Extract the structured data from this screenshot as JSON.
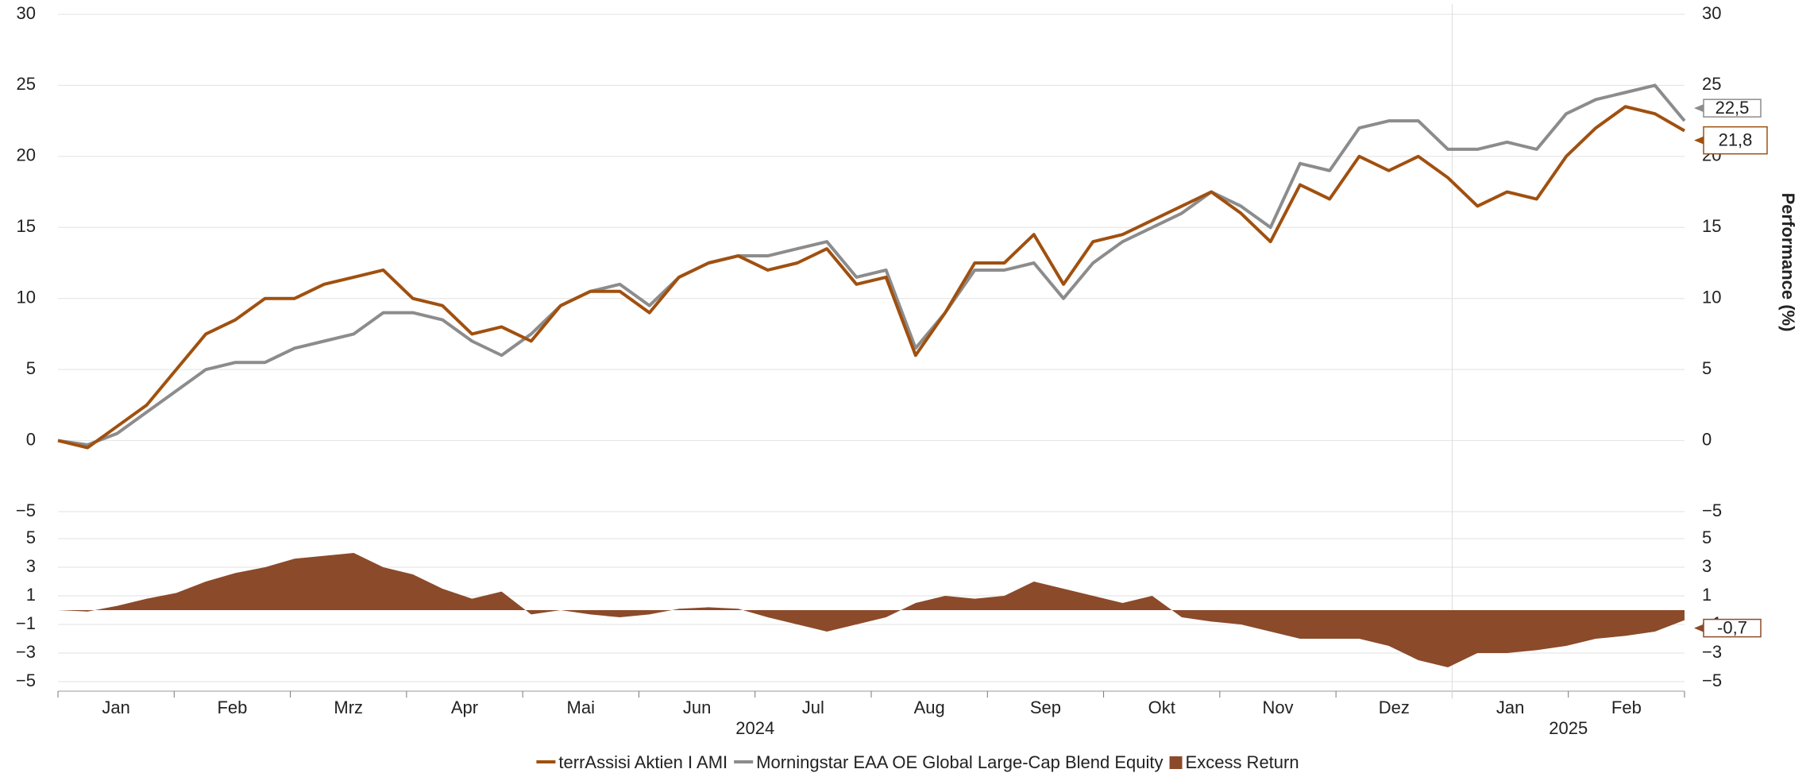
{
  "chart_data": [
    {
      "type": "line",
      "categories": [
        "Jan",
        "Feb",
        "Mrz",
        "Apr",
        "Mai",
        "Jun",
        "Jul",
        "Aug",
        "Sep",
        "Okt",
        "Nov",
        "Dez",
        "Jan",
        "Feb"
      ],
      "year_labels": [
        "2024",
        "2025"
      ],
      "y_label": "Performance (%)",
      "ylim": [
        -5,
        30
      ],
      "yticks": [
        {
          "value": -5,
          "label": "−5"
        },
        0,
        5,
        10,
        15,
        20,
        25,
        30
      ],
      "grid": true,
      "series": [
        {
          "name": "terrAssisi Aktien I AMI",
          "color": "#a0500f",
          "end_label": "21,8",
          "values": [
            [
              0,
              -0.5,
              1,
              2.5
            ],
            [
              5,
              7.5,
              8.5,
              10
            ],
            [
              10,
              11,
              11.5,
              12
            ],
            [
              10,
              9.5,
              7.5,
              8
            ],
            [
              7,
              9.5,
              10.5,
              10.5
            ],
            [
              9,
              11.5,
              12.5,
              13
            ],
            [
              12,
              12.5,
              13.5,
              11
            ],
            [
              11.5,
              6,
              9,
              12.5
            ],
            [
              12.5,
              14.5,
              11,
              14
            ],
            [
              14.5,
              15.5,
              16.5,
              17.5
            ],
            [
              16,
              14,
              18,
              17
            ],
            [
              20,
              19,
              20,
              18.5
            ],
            [
              16.5,
              17.5,
              17,
              20
            ],
            [
              22,
              23.5,
              23,
              21.8
            ]
          ]
        },
        {
          "name": "Morningstar EAA OE Global Large-Cap Blend Equity",
          "color": "#8c8c8c",
          "end_label": "22,5",
          "values": [
            [
              0,
              -0.3,
              0.5,
              2
            ],
            [
              3.5,
              5,
              5.5,
              5.5
            ],
            [
              6.5,
              7,
              7.5,
              9
            ],
            [
              9,
              8.5,
              7,
              6
            ],
            [
              7.5,
              9.5,
              10.5,
              11
            ],
            [
              9.5,
              11.5,
              12.5,
              13
            ],
            [
              13,
              13.5,
              14,
              11.5
            ],
            [
              12,
              6.5,
              9,
              12
            ],
            [
              12,
              12.5,
              10,
              12.5
            ],
            [
              14,
              15,
              16,
              17.5
            ],
            [
              16.5,
              15,
              19.5,
              19
            ],
            [
              22,
              22.5,
              22.5,
              20.5
            ],
            [
              20.5,
              21,
              20.5,
              23
            ],
            [
              24,
              24.5,
              25,
              22.5
            ]
          ]
        }
      ]
    },
    {
      "type": "area",
      "name": "Excess Return",
      "color": "#8b4a2a",
      "end_label": "-0,7",
      "ylim": [
        -5,
        5
      ],
      "yticks": [
        {
          "value": -5,
          "label": "−5"
        },
        {
          "value": -3,
          "label": "−3"
        },
        {
          "value": -1,
          "label": "−1"
        },
        1,
        3,
        5
      ],
      "grid": true,
      "values": [
        [
          0,
          -0.1,
          0.3,
          0.8
        ],
        [
          1.2,
          2,
          2.6,
          3
        ],
        [
          3.6,
          3.8,
          4,
          3
        ],
        [
          2.5,
          1.5,
          0.8,
          1.3
        ],
        [
          -0.3,
          0,
          -0.3,
          -0.5
        ],
        [
          -0.3,
          0.1,
          0.2,
          0.1
        ],
        [
          -0.5,
          -1,
          -1.5,
          -1
        ],
        [
          -0.5,
          0.5,
          1,
          0.8
        ],
        [
          1,
          2,
          1.5,
          1
        ],
        [
          0.5,
          1,
          -0.5,
          -0.8
        ],
        [
          -1,
          -1.5,
          -2,
          -2
        ],
        [
          -2,
          -2.5,
          -3.5,
          -4
        ],
        [
          -3,
          -3,
          -2.8,
          -2.5
        ],
        [
          -2,
          -1.8,
          -1.5,
          -0.7
        ]
      ]
    }
  ]
}
